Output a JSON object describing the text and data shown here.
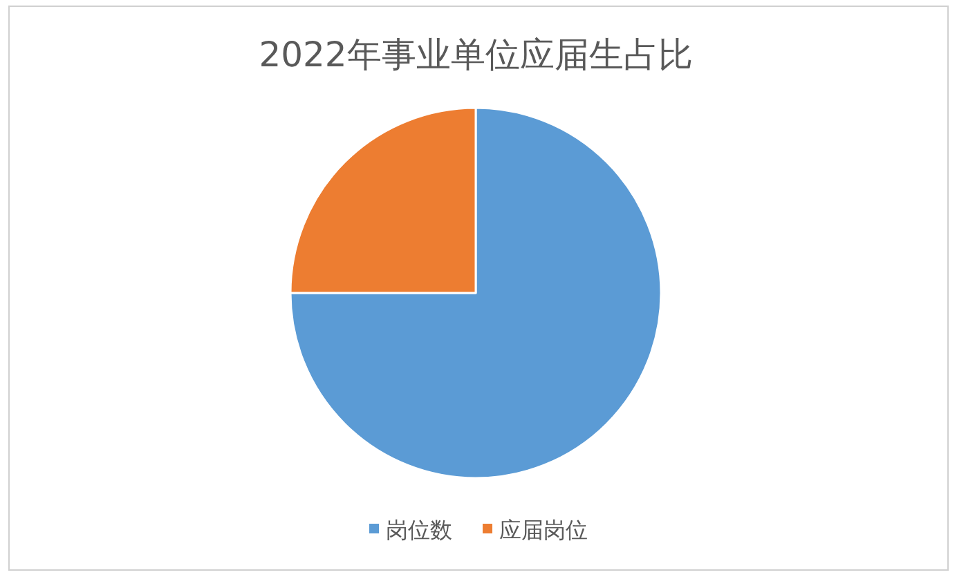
{
  "chart_data": {
    "type": "pie",
    "title": "2022年事业单位应届生占比",
    "categories": [
      "岗位数",
      "应届岗位"
    ],
    "values": [
      75,
      25
    ],
    "colors": [
      "#5b9bd5",
      "#ed7d31"
    ],
    "legend": "bottom"
  }
}
